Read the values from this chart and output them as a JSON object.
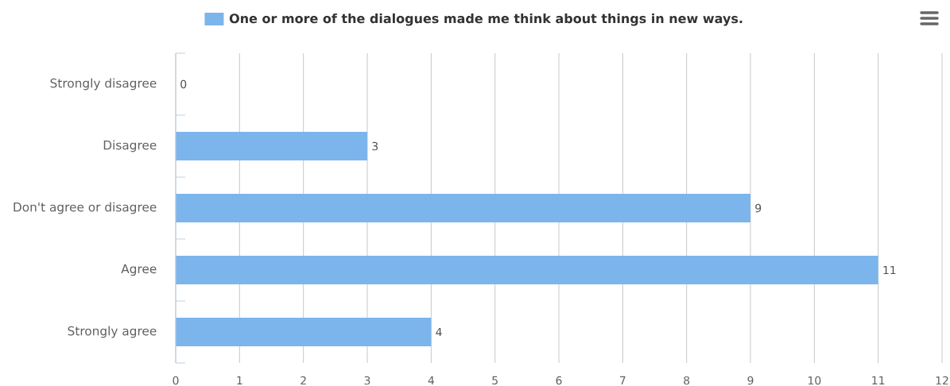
{
  "chart_data": {
    "type": "bar",
    "orientation": "horizontal",
    "categories": [
      "Strongly disagree",
      "Disagree",
      "Don't agree or disagree",
      "Agree",
      "Strongly agree"
    ],
    "series": [
      {
        "name": "One or more of the dialogues made me think about things in new ways.",
        "color": "#7cb5ec",
        "values": [
          0,
          3,
          9,
          11,
          4
        ]
      }
    ],
    "xlim": [
      0,
      12
    ],
    "xticks": [
      0,
      1,
      2,
      3,
      4,
      5,
      6,
      7,
      8,
      9,
      10,
      11,
      12
    ],
    "grid": "x",
    "legend": "top",
    "data_labels": true
  }
}
